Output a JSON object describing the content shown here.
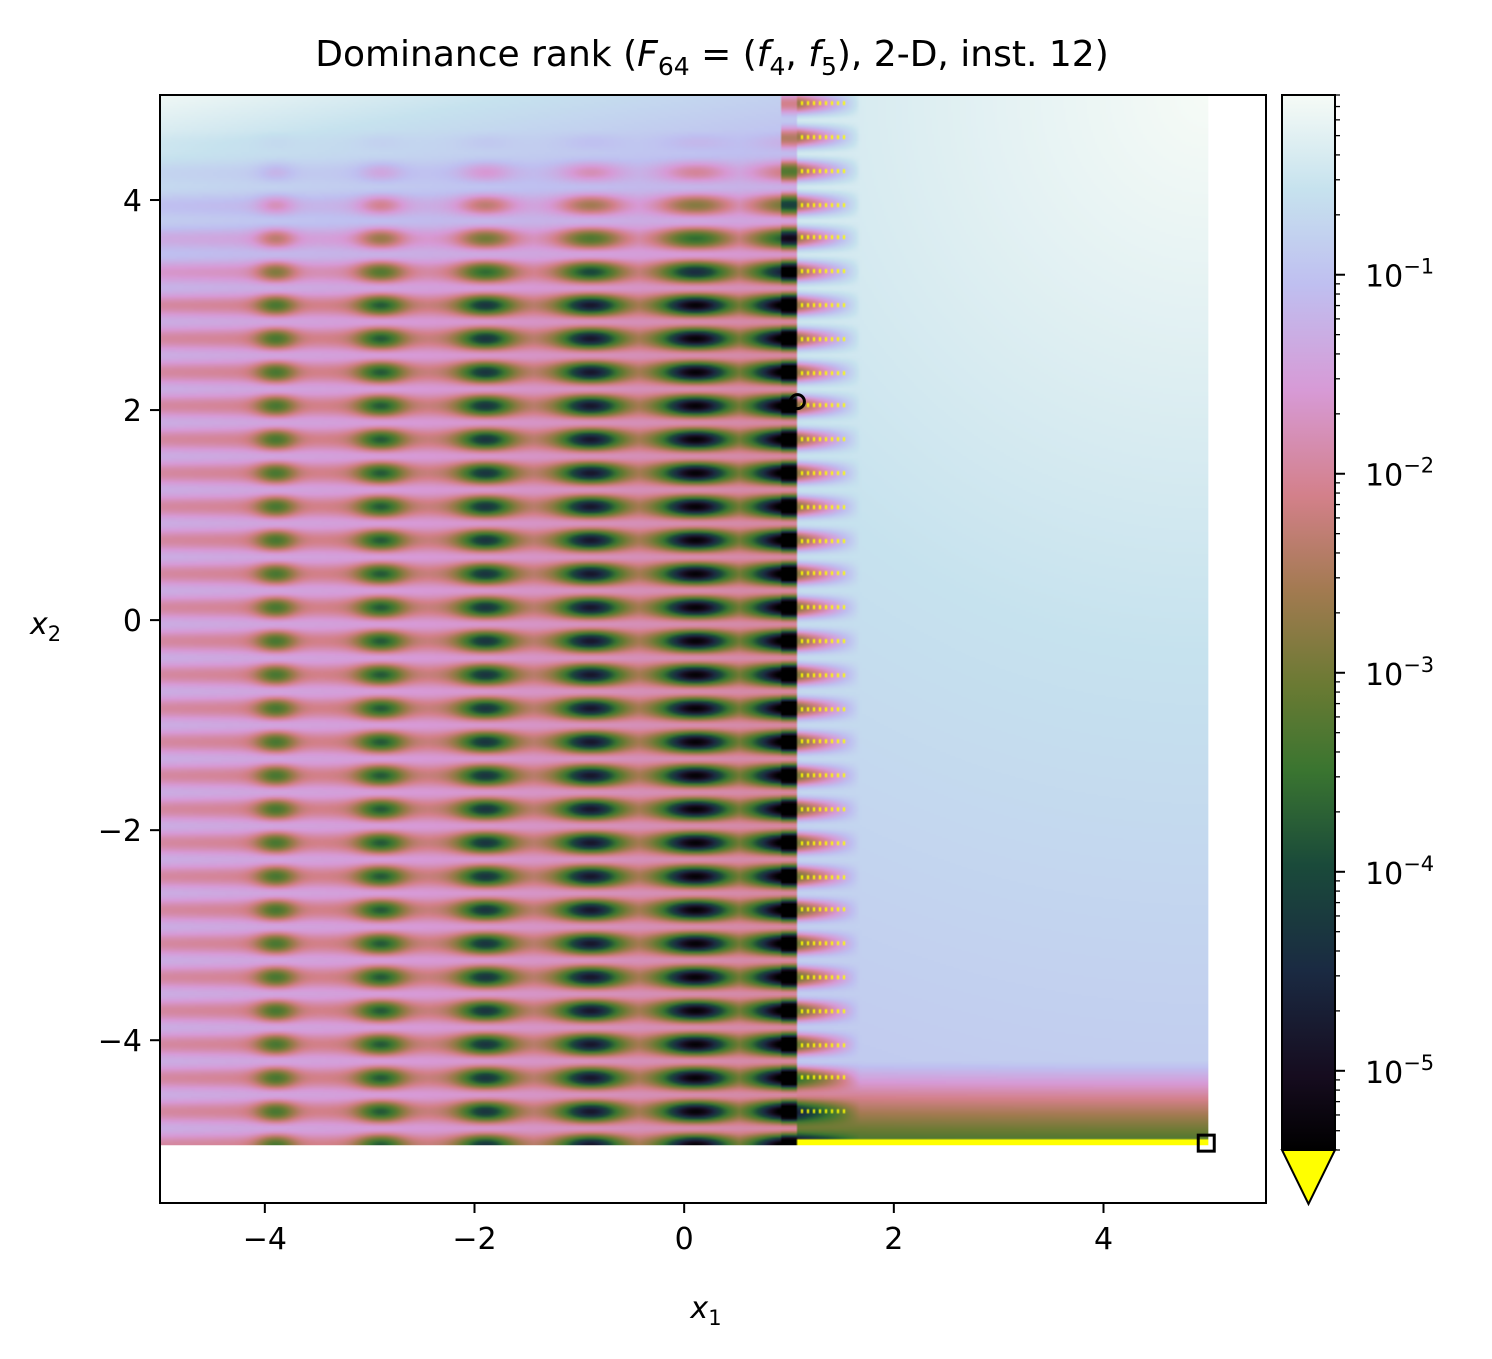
{
  "chart_data": {
    "type": "heatmap",
    "title": {
      "prefix": "Dominance rank (",
      "F_base": "F",
      "F_sub": "64",
      "eq": " = (",
      "f4_base": "f",
      "f4_sub": "4",
      "comma": ", ",
      "f5_base": "f",
      "f5_sub": "5",
      "suffix": "), 2-D, inst. 12)"
    },
    "xlabel": {
      "base": "x",
      "sub": "1"
    },
    "ylabel": {
      "base": "x",
      "sub": "2"
    },
    "xlim": [
      -5,
      5.55
    ],
    "ylim": [
      -5.55,
      5
    ],
    "data_extent": {
      "x": [
        -5,
        5
      ],
      "y": [
        -5,
        5
      ]
    },
    "xticks": [
      {
        "value": -4,
        "label": "−4"
      },
      {
        "value": -2,
        "label": "−2"
      },
      {
        "value": 0,
        "label": "0"
      },
      {
        "value": 2,
        "label": "2"
      },
      {
        "value": 4,
        "label": "4"
      }
    ],
    "yticks": [
      {
        "value": 4,
        "label": "4"
      },
      {
        "value": 2,
        "label": "2"
      },
      {
        "value": 0,
        "label": "0"
      },
      {
        "value": -2,
        "label": "−2"
      },
      {
        "value": -4,
        "label": "−4"
      }
    ],
    "colorbar": {
      "scale": "log",
      "colormap": "cubehelix",
      "range": [
        4e-06,
        0.8
      ],
      "ticks": [
        {
          "value": 1e-05,
          "base": "10",
          "exp": "−5"
        },
        {
          "value": 0.0001,
          "base": "10",
          "exp": "−4"
        },
        {
          "value": 0.001,
          "base": "10",
          "exp": "−3"
        },
        {
          "value": 0.01,
          "base": "10",
          "exp": "−2"
        },
        {
          "value": 0.1,
          "base": "10",
          "exp": "−1"
        }
      ],
      "under_color": "#ffff00",
      "extend": "min"
    },
    "markers": [
      {
        "kind": "circle",
        "x": 1.08,
        "y": 2.08,
        "color": "#000000"
      },
      {
        "kind": "square",
        "x": 4.98,
        "y": -4.98,
        "color": "#000000"
      }
    ],
    "features": {
      "pareto_boundary_x": 1.08,
      "pareto_boundary_y": -5.0,
      "band_spacing_y": 0.32,
      "spot_columns_x": [
        -3.9,
        -2.9,
        -1.9,
        -0.9,
        0.1,
        1.0
      ]
    }
  }
}
